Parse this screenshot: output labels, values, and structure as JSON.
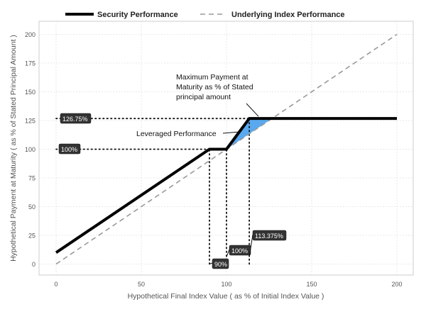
{
  "chart_data": {
    "type": "line",
    "title": "",
    "xlabel": "Hypothetical Final Index Value ( as % of Initial Index Value )",
    "ylabel": "Hypothetical Payment at Maturity ( as % of Stated Principal Amount )",
    "xlim": [
      -10,
      205
    ],
    "ylim": [
      -10,
      210
    ],
    "x_ticks": [
      0,
      50,
      100,
      150,
      200
    ],
    "y_ticks": [
      0,
      25,
      50,
      75,
      100,
      125,
      150,
      175,
      200
    ],
    "grid": true,
    "legend_position": "top",
    "series": [
      {
        "name": "Security Performance",
        "style": "solid",
        "color": "#000000",
        "x": [
          0,
          90,
          100,
          113.375,
          200
        ],
        "y": [
          10,
          100,
          100,
          126.75,
          126.75
        ]
      },
      {
        "name": "Underlying Index Performance",
        "style": "dashed",
        "color": "#999999",
        "x": [
          0,
          200
        ],
        "y": [
          0,
          200
        ]
      }
    ],
    "shaded_region": {
      "color": "#5aa9ef",
      "x": [
        100,
        113.375,
        126.75
      ],
      "y": [
        100,
        126.75,
        126.75
      ]
    },
    "reference_lines": [
      {
        "orientation": "horizontal",
        "value": 126.75,
        "from_x": 0,
        "to_x": 113.375
      },
      {
        "orientation": "horizontal",
        "value": 100,
        "from_x": 0,
        "to_x": 90
      },
      {
        "orientation": "vertical",
        "value": 90,
        "from_y": 0,
        "to_y": 100
      },
      {
        "orientation": "vertical",
        "value": 100,
        "from_y": 0,
        "to_y": 100
      },
      {
        "orientation": "vertical",
        "value": 113.375,
        "from_y": 0,
        "to_y": 126.75
      }
    ],
    "value_labels": [
      {
        "text": "126.75%",
        "x": 0,
        "y": 126.75
      },
      {
        "text": "100%",
        "x": 0,
        "y": 100
      },
      {
        "text": "90%",
        "x": 90,
        "y": 0
      },
      {
        "text": "100%",
        "x": 100,
        "y": 8
      },
      {
        "text": "113.375%",
        "x": 113.375,
        "y": 25
      }
    ],
    "annotations": [
      {
        "lines": [
          "Maximum Payment at",
          "Maturity as % of Stated",
          "principal amount"
        ],
        "points_to": [
          118,
          126.75
        ]
      },
      {
        "lines": [
          "Leveraged Performance"
        ],
        "points_to": [
          110,
          115
        ]
      }
    ]
  }
}
